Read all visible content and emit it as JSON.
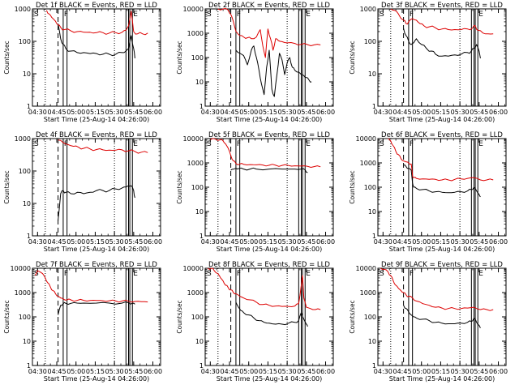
{
  "figure": {
    "time_axis": {
      "start_time_label": "Start Time (25-Aug-14 04:26:00)",
      "ticks": [
        "04:30",
        "04:45",
        "05:00",
        "05:15",
        "05:30",
        "05:45",
        "06:00"
      ],
      "tick_minutes": [
        4,
        19,
        34,
        49,
        64,
        79,
        94
      ],
      "range_minutes": [
        0,
        100
      ]
    },
    "count_axis": {
      "ylabel": "Counts/sec",
      "scale": "log"
    },
    "interval_marks": {
      "dotted_minutes": [
        10,
        64
      ],
      "dashed_minutes": [
        20
      ],
      "solid_minutes": [
        24,
        27,
        73,
        75,
        76,
        78
      ]
    },
    "colors": {
      "events": "#000000",
      "lld": "#dd0000",
      "axes": "#000000"
    }
  },
  "chart_data": [
    {
      "type": "line",
      "title": "Det 1f BLACK = Events, RED = LLD",
      "corner_marks": [
        "S",
        "F",
        "E"
      ],
      "ylim": [
        1,
        1000
      ],
      "yticks": [
        "1",
        "10",
        "100",
        "1000"
      ],
      "ytick_values": [
        1,
        10,
        100,
        1000
      ],
      "series": [
        {
          "name": "BLACK = Events",
          "x": [
            20,
            22,
            24,
            26,
            30,
            35,
            40,
            45,
            50,
            55,
            60,
            65,
            70,
            73,
            75,
            77,
            79,
            80
          ],
          "y": [
            350,
            120,
            80,
            60,
            50,
            45,
            45,
            42,
            42,
            40,
            40,
            40,
            45,
            50,
            60,
            150,
            60,
            30
          ]
        },
        {
          "name": "RED = LLD",
          "x": [
            11,
            13,
            15,
            18,
            20,
            22,
            25,
            30,
            35,
            40,
            45,
            50,
            55,
            60,
            65,
            70,
            73,
            75,
            77,
            79,
            82,
            86,
            90
          ],
          "y": [
            900,
            700,
            550,
            420,
            320,
            270,
            230,
            210,
            200,
            190,
            190,
            185,
            185,
            180,
            185,
            190,
            220,
            300,
            850,
            200,
            170,
            170,
            180
          ]
        }
      ]
    },
    {
      "type": "line",
      "title": "Det 2f BLACK = Events, RED = LLD",
      "corner_marks": [
        "S",
        "F",
        "E"
      ],
      "ylim": [
        1,
        10000
      ],
      "yticks": [
        "1",
        "10",
        "100",
        "1000",
        "10000"
      ],
      "ytick_values": [
        1,
        10,
        100,
        1000,
        10000
      ],
      "series": [
        {
          "name": "BLACK = Events",
          "x": [
            24,
            27,
            30,
            33,
            36,
            38,
            40,
            42,
            44,
            46,
            48,
            50,
            52,
            54,
            56,
            58,
            60,
            62,
            64,
            66,
            68,
            70,
            73,
            75,
            77,
            79,
            81,
            83
          ],
          "y": [
            200,
            150,
            120,
            50,
            200,
            300,
            100,
            30,
            8,
            3,
            40,
            200,
            5,
            2.5,
            20,
            150,
            80,
            20,
            60,
            100,
            40,
            30,
            25,
            20,
            18,
            15,
            12,
            10
          ]
        },
        {
          "name": "RED = LLD",
          "x": [
            10,
            14,
            18,
            20,
            22,
            24,
            27,
            30,
            33,
            36,
            40,
            43,
            45,
            47,
            49,
            51,
            53,
            55,
            57,
            60,
            64,
            70,
            75,
            80,
            85,
            90
          ],
          "y": [
            10000,
            10000,
            9000,
            6000,
            3000,
            1200,
            800,
            700,
            650,
            600,
            700,
            1400,
            300,
            100,
            1500,
            600,
            200,
            600,
            500,
            450,
            400,
            380,
            350,
            340,
            330,
            330
          ]
        }
      ]
    },
    {
      "type": "line",
      "title": "Det 3f BLACK = Events, RED = LLD",
      "corner_marks": [
        "S",
        "F",
        "E"
      ],
      "ylim": [
        1,
        1000
      ],
      "yticks": [
        "1",
        "10",
        "100",
        "1000"
      ],
      "ytick_values": [
        1,
        10,
        100,
        1000
      ],
      "series": [
        {
          "name": "BLACK = Events",
          "x": [
            20,
            22,
            24,
            26,
            28,
            30,
            34,
            38,
            42,
            45,
            50,
            55,
            60,
            65,
            70,
            73,
            75,
            77,
            79,
            80
          ],
          "y": [
            250,
            150,
            100,
            80,
            90,
            120,
            80,
            60,
            50,
            40,
            35,
            35,
            38,
            40,
            45,
            50,
            60,
            80,
            50,
            30
          ]
        },
        {
          "name": "RED = LLD",
          "x": [
            10,
            13,
            16,
            20,
            22,
            24,
            27,
            30,
            33,
            36,
            40,
            45,
            50,
            55,
            60,
            65,
            70,
            74,
            76,
            78,
            82,
            86,
            90
          ],
          "y": [
            1000,
            900,
            700,
            450,
            350,
            400,
            500,
            450,
            350,
            300,
            280,
            260,
            240,
            230,
            230,
            230,
            240,
            260,
            300,
            220,
            180,
            170,
            170
          ]
        }
      ]
    },
    {
      "type": "line",
      "title": "Det 4f BLACK = Events, RED = LLD",
      "corner_marks": [
        "S",
        "F",
        "E"
      ],
      "ylim": [
        1,
        1000
      ],
      "yticks": [
        "1",
        "10",
        "100",
        "1000"
      ],
      "ytick_values": [
        1,
        10,
        100,
        1000
      ],
      "series": [
        {
          "name": "BLACK = Events",
          "x": [
            20,
            22,
            24,
            26,
            30,
            35,
            40,
            45,
            50,
            55,
            60,
            65,
            70,
            73,
            75,
            77,
            79,
            80
          ],
          "y": [
            3,
            20,
            25,
            22,
            20,
            22,
            20,
            22,
            25,
            25,
            25,
            28,
            30,
            32,
            35,
            35,
            25,
            15
          ]
        },
        {
          "name": "RED = LLD",
          "x": [
            20,
            24,
            28,
            32,
            36,
            40,
            45,
            50,
            55,
            60,
            65,
            70,
            75,
            80,
            85,
            90
          ],
          "y": [
            900,
            750,
            650,
            580,
            540,
            500,
            480,
            460,
            450,
            440,
            440,
            450,
            420,
            400,
            380,
            370
          ]
        }
      ]
    },
    {
      "type": "line",
      "title": "Det 5f BLACK = Events, RED = LLD",
      "corner_marks": [
        "S",
        "F",
        "E"
      ],
      "ylim": [
        1,
        10000
      ],
      "yticks": [
        "1",
        "10",
        "100",
        "1000",
        "10000"
      ],
      "ytick_values": [
        1,
        10,
        100,
        1000,
        10000
      ],
      "series": [
        {
          "name": "BLACK = Events",
          "x": [
            20,
            22,
            24,
            26,
            30,
            35,
            40,
            50,
            60,
            70,
            75,
            78,
            80
          ],
          "y": [
            500,
            550,
            600,
            580,
            560,
            560,
            560,
            560,
            560,
            560,
            560,
            520,
            400
          ]
        },
        {
          "name": "RED = LLD",
          "x": [
            4,
            8,
            12,
            14,
            16,
            18,
            20,
            22,
            24,
            27,
            30,
            35,
            40,
            45,
            50,
            55,
            60,
            65,
            70,
            75,
            80,
            85,
            90
          ],
          "y": [
            9000,
            9500,
            9000,
            8000,
            6000,
            4000,
            2000,
            1200,
            950,
            900,
            870,
            850,
            830,
            820,
            800,
            800,
            790,
            780,
            760,
            740,
            720,
            700,
            690
          ]
        }
      ]
    },
    {
      "type": "line",
      "title": "Det 6f BLACK = Events, RED = LLD",
      "corner_marks": [
        "S",
        "F",
        "E"
      ],
      "ylim": [
        1,
        10000
      ],
      "yticks": [
        "1",
        "10",
        "100",
        "1000",
        "10000"
      ],
      "ytick_values": [
        1,
        10,
        100,
        1000,
        10000
      ],
      "series": [
        {
          "name": "BLACK = Events",
          "x": [
            20,
            22,
            24,
            26,
            27,
            28,
            30,
            35,
            40,
            45,
            50,
            55,
            60,
            65,
            70,
            73,
            75,
            77,
            79,
            80
          ],
          "y": [
            800,
            700,
            600,
            500,
            150,
            100,
            90,
            80,
            70,
            65,
            62,
            60,
            62,
            65,
            70,
            80,
            100,
            70,
            50,
            40
          ]
        },
        {
          "name": "RED = LLD",
          "x": [
            8,
            10,
            12,
            14,
            16,
            18,
            20,
            22,
            24,
            26,
            27,
            28,
            30,
            35,
            40,
            45,
            50,
            55,
            60,
            65,
            70,
            75,
            80,
            85,
            90
          ],
          "y": [
            10000,
            8000,
            5000,
            3000,
            2200,
            1500,
            1200,
            1100,
            1000,
            900,
            300,
            250,
            230,
            220,
            210,
            210,
            200,
            200,
            210,
            220,
            230,
            250,
            200,
            200,
            200
          ]
        }
      ]
    },
    {
      "type": "line",
      "title": "Det 7f BLACK = Events, RED = LLD",
      "corner_marks": [
        "S",
        "F",
        "E"
      ],
      "ylim": [
        1,
        10000
      ],
      "yticks": [
        "1",
        "10",
        "100",
        "1000",
        "10000"
      ],
      "ytick_values": [
        1,
        10,
        100,
        1000,
        10000
      ],
      "series": [
        {
          "name": "BLACK = Events",
          "x": [
            20,
            22,
            24,
            26,
            30,
            35,
            40,
            50,
            60,
            70,
            75,
            78,
            80
          ],
          "y": [
            120,
            300,
            350,
            360,
            360,
            370,
            370,
            370,
            370,
            370,
            380,
            360,
            330
          ]
        },
        {
          "name": "RED = LLD",
          "x": [
            2,
            4,
            8,
            10,
            12,
            14,
            16,
            18,
            20,
            22,
            24,
            27,
            30,
            35,
            40,
            45,
            50,
            55,
            60,
            65,
            70,
            75,
            80,
            85,
            90
          ],
          "y": [
            5000,
            8000,
            6000,
            4000,
            2500,
            1700,
            1200,
            900,
            700,
            600,
            550,
            500,
            500,
            480,
            480,
            470,
            470,
            460,
            460,
            450,
            450,
            440,
            430,
            420,
            410
          ]
        }
      ]
    },
    {
      "type": "line",
      "title": "Det 8f BLACK = Events, RED = LLD",
      "corner_marks": [
        "S",
        "F",
        "E"
      ],
      "ylim": [
        1,
        10000
      ],
      "yticks": [
        "1",
        "10",
        "100",
        "1000",
        "10000"
      ],
      "ytick_values": [
        1,
        10,
        100,
        1000,
        10000
      ],
      "series": [
        {
          "name": "BLACK = Events",
          "x": [
            24,
            26,
            28,
            30,
            34,
            38,
            42,
            46,
            50,
            55,
            60,
            65,
            70,
            73,
            75,
            77,
            79,
            80
          ],
          "y": [
            400,
            250,
            180,
            150,
            120,
            90,
            70,
            60,
            55,
            50,
            50,
            55,
            60,
            70,
            150,
            80,
            50,
            40
          ]
        },
        {
          "name": "RED = LLD",
          "x": [
            2,
            5,
            7,
            10,
            12,
            14,
            16,
            18,
            20,
            22,
            24,
            27,
            30,
            35,
            40,
            45,
            50,
            55,
            60,
            65,
            70,
            73,
            75,
            76,
            77,
            79,
            82,
            86,
            90
          ],
          "y": [
            10000,
            10000,
            8000,
            6000,
            4000,
            3000,
            2000,
            1600,
            1300,
            1000,
            900,
            700,
            600,
            500,
            400,
            320,
            300,
            280,
            270,
            270,
            280,
            350,
            2000,
            5000,
            600,
            250,
            220,
            200,
            200
          ]
        }
      ]
    },
    {
      "type": "line",
      "title": "Det 9f BLACK = Events, RED = LLD",
      "corner_marks": [
        "S",
        "F",
        "E"
      ],
      "ylim": [
        1,
        10000
      ],
      "yticks": [
        "1",
        "10",
        "100",
        "1000",
        "10000"
      ],
      "ytick_values": [
        1,
        10,
        100,
        1000,
        10000
      ],
      "series": [
        {
          "name": "BLACK = Events",
          "x": [
            20,
            22,
            24,
            26,
            28,
            30,
            35,
            40,
            45,
            50,
            55,
            60,
            65,
            70,
            73,
            75,
            77,
            79,
            80
          ],
          "y": [
            300,
            220,
            160,
            120,
            100,
            90,
            80,
            70,
            60,
            55,
            52,
            52,
            55,
            60,
            65,
            90,
            60,
            45,
            35
          ]
        },
        {
          "name": "RED = LLD",
          "x": [
            2,
            5,
            8,
            10,
            12,
            14,
            16,
            18,
            20,
            22,
            24,
            27,
            30,
            35,
            40,
            45,
            50,
            55,
            60,
            65,
            70,
            75,
            80,
            85,
            90
          ],
          "y": [
            10000,
            9000,
            7000,
            5000,
            3000,
            2000,
            1500,
            1200,
            1000,
            800,
            700,
            600,
            450,
            350,
            300,
            250,
            230,
            220,
            220,
            220,
            230,
            250,
            200,
            200,
            200
          ]
        }
      ]
    }
  ]
}
